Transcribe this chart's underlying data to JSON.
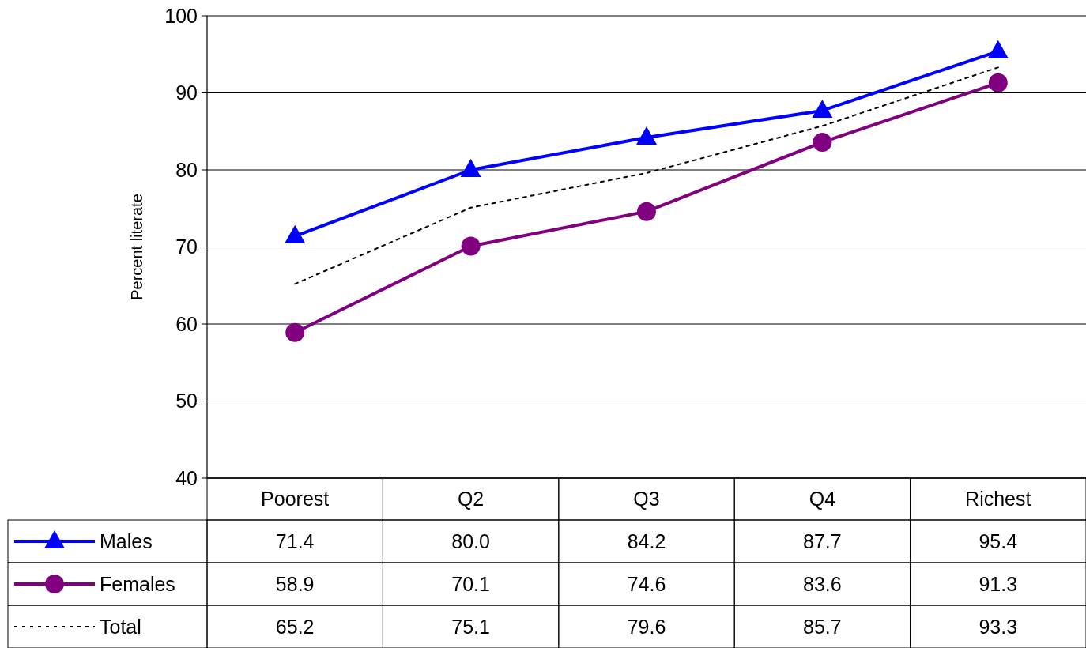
{
  "chart_data": {
    "type": "line",
    "ylabel": "Percent literate",
    "categories": [
      "Poorest",
      "Q2",
      "Q3",
      "Q4",
      "Richest"
    ],
    "series": [
      {
        "name": "Males",
        "color": "#0000ff",
        "marker": "triangle",
        "line_style": "solid",
        "values": [
          71.4,
          80.0,
          84.2,
          87.7,
          95.4
        ],
        "value_labels": [
          "71.4",
          "80.0",
          "84.2",
          "87.7",
          "95.4"
        ]
      },
      {
        "name": "Females",
        "color": "#800080",
        "marker": "circle",
        "line_style": "solid",
        "values": [
          58.9,
          70.1,
          74.6,
          83.6,
          91.3
        ],
        "value_labels": [
          "58.9",
          "70.1",
          "74.6",
          "83.6",
          "91.3"
        ]
      },
      {
        "name": "Total",
        "color": "#000000",
        "marker": "none",
        "line_style": "dotted",
        "values": [
          65.2,
          75.1,
          79.6,
          85.7,
          93.3
        ],
        "value_labels": [
          "65.2",
          "75.1",
          "79.6",
          "85.7",
          "93.3"
        ]
      }
    ],
    "ylim": [
      40,
      100
    ],
    "yticks": [
      40,
      50,
      60,
      70,
      80,
      90,
      100
    ],
    "grid": "y",
    "legend": "bottom left"
  }
}
